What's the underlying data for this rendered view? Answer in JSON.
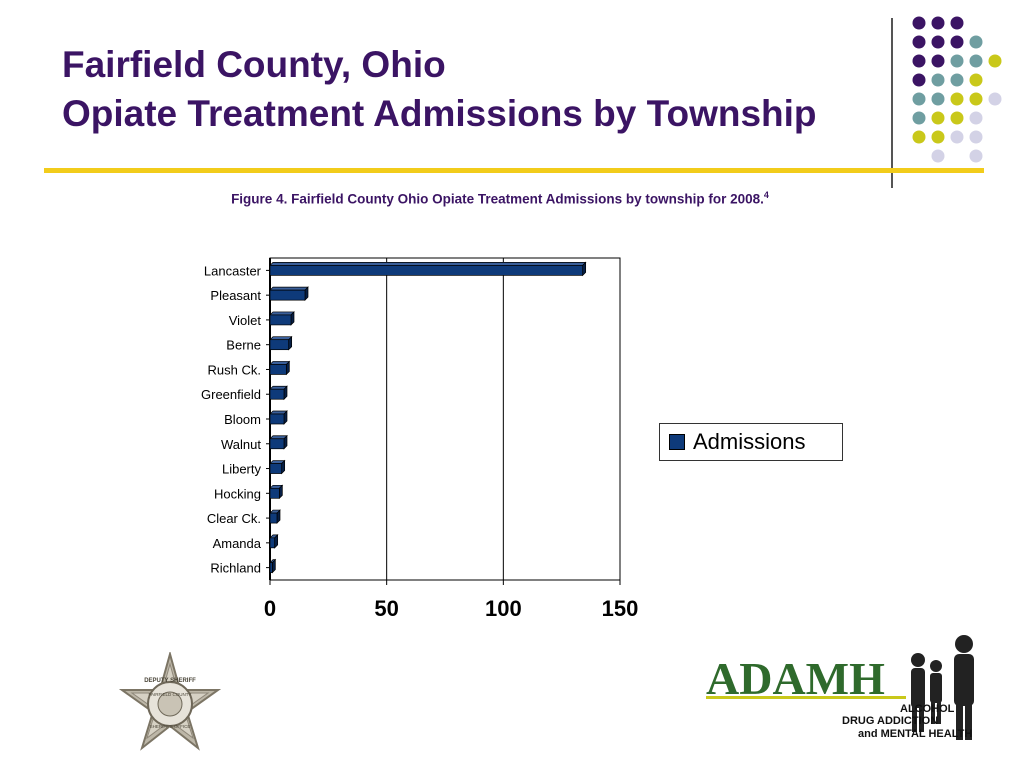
{
  "slide": {
    "title_line1": "Fairfield County, Ohio",
    "title_line2": "Opiate Treatment Admissions by Township",
    "caption": "Figure 4.  Fairfield County Ohio Opiate Treatment Admissions by township for 2008.",
    "caption_sup": "4"
  },
  "colors": {
    "title": "#3b1464",
    "rule": "#f2cc1b",
    "bar": "#0e3a7a",
    "dot_purple": "#3b1464",
    "dot_teal": "#6f9ea1",
    "dot_yellow": "#c9c81a",
    "dot_lavender": "#d3d2e6"
  },
  "chart_data": {
    "type": "bar",
    "orientation": "horizontal",
    "categories": [
      "Lancaster",
      "Pleasant",
      "Violet",
      "Berne",
      "Rush Ck.",
      "Greenfield",
      "Bloom",
      "Walnut",
      "Liberty",
      "Hocking",
      "Clear Ck.",
      "Amanda",
      "Richland"
    ],
    "series": [
      {
        "name": "Admissions",
        "values": [
          134,
          15,
          9,
          8,
          7,
          6,
          6,
          6,
          5,
          4,
          3,
          2,
          1
        ]
      }
    ],
    "xlim": [
      0,
      150
    ],
    "xticks": [
      0,
      50,
      100,
      150
    ],
    "xlabel": "",
    "ylabel": "",
    "grid": "vertical",
    "legend": "right"
  },
  "logos": {
    "badge_text_top": "DEPUTY SHERIFF",
    "badge_text_mid": "FAIRFIELD COUNTY",
    "badge_text_bottom": "SHERIFF'S OFFICE",
    "adamh_word": "ADAMH",
    "adamh_line1": "ALCOHOL",
    "adamh_line2": "DRUG ADDICTION",
    "adamh_line3": "and MENTAL HEALTH"
  }
}
